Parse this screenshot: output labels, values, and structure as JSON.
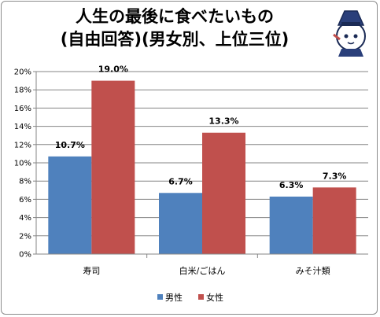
{
  "chart_data": {
    "type": "bar",
    "title_lines": [
      "人生の最後に食べたいもの",
      "(自由回答)(男女別、上位三位)"
    ],
    "categories": [
      "寿司",
      "白米/ごはん",
      "みそ汁類"
    ],
    "series": [
      {
        "name": "男性",
        "color": "#4f81bd",
        "values": [
          10.7,
          6.7,
          6.3
        ],
        "labels": [
          "10.7%",
          "6.7%",
          "6.3%"
        ]
      },
      {
        "name": "女性",
        "color": "#c0504d",
        "values": [
          19.0,
          13.3,
          7.3
        ],
        "labels": [
          "19.0%",
          "13.3%",
          "7.3%"
        ]
      }
    ],
    "ylim": [
      0,
      20
    ],
    "y_ticks": [
      "0%",
      "2%",
      "4%",
      "6%",
      "8%",
      "10%",
      "12%",
      "14%",
      "16%",
      "18%",
      "20%"
    ],
    "grid": true,
    "legend_position": "bottom"
  }
}
